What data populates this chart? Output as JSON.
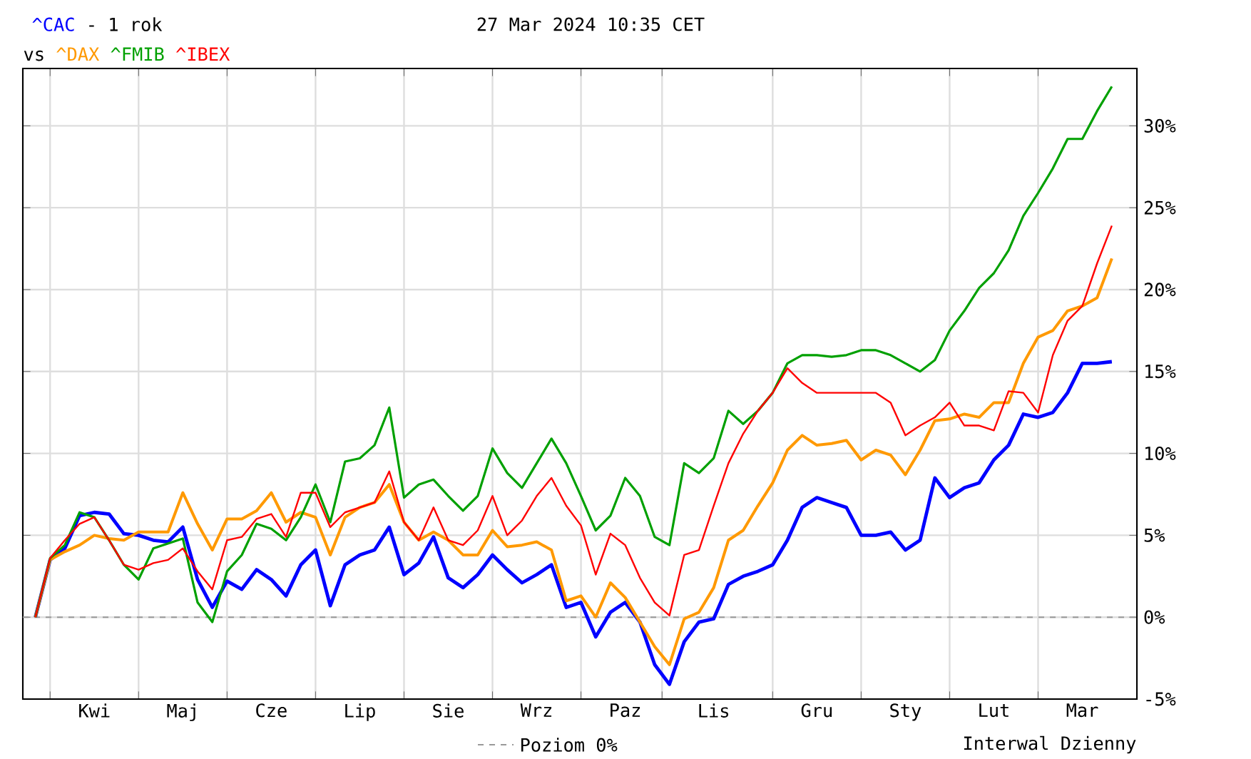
{
  "chart_data": {
    "type": "line",
    "title": "- 1 rok",
    "subtitle": "27 Mar 2024 10:35 CET",
    "legend": "bottom",
    "grid": true,
    "marker": "none",
    "line_style": "solid",
    "annotations": [
      "vs",
      "Interwal Dzienny"
    ],
    "ref_lines": [
      {
        "axis": "y",
        "value": 0,
        "label": "Poziom 0%",
        "color": "#999999",
        "line_style": "dashed"
      }
    ],
    "categories": [
      null,
      null,
      null,
      null,
      "Kwi",
      null,
      null,
      null,
      null,
      null,
      "Maj",
      null,
      null,
      null,
      null,
      null,
      "Cze",
      null,
      null,
      null,
      null,
      null,
      "Lip",
      null,
      null,
      null,
      null,
      null,
      "Sie",
      null,
      null,
      null,
      null,
      null,
      "Wrz",
      null,
      null,
      null,
      null,
      null,
      "Paz",
      null,
      null,
      null,
      null,
      null,
      "Lis",
      null,
      null,
      null,
      null,
      null,
      null,
      "Gru",
      null,
      null,
      null,
      null,
      null,
      "Sty",
      null,
      null,
      null,
      null,
      null,
      "Lut",
      null,
      null,
      null,
      null,
      null,
      "Mar",
      null,
      null
    ],
    "ylim": [
      -5,
      33.5
    ],
    "yticks": [
      {
        "value": -5,
        "label": "-5%"
      },
      {
        "value": 0,
        "label": "0%"
      },
      {
        "value": 5,
        "label": "5%"
      },
      {
        "value": 10,
        "label": "10%"
      },
      {
        "value": 15,
        "label": "15%"
      },
      {
        "value": 20,
        "label": "20%"
      },
      {
        "value": 25,
        "label": "25%"
      },
      {
        "value": 30,
        "label": "30%"
      }
    ],
    "series": [
      {
        "name": "^CAC",
        "color": "#0000ff",
        "values": [
          0,
          3.5,
          4.2,
          6.2,
          6.4,
          6.3,
          5.1,
          5.0,
          4.7,
          4.6,
          5.5,
          2.3,
          0.6,
          2.2,
          1.7,
          2.9,
          2.3,
          1.3,
          3.2,
          4.1,
          0.7,
          3.2,
          3.8,
          4.1,
          5.5,
          2.6,
          3.3,
          4.9,
          2.4,
          1.8,
          2.6,
          3.8,
          2.9,
          2.1,
          2.6,
          3.2,
          0.6,
          0.9,
          -1.2,
          0.3,
          0.9,
          -0.3,
          -2.9,
          -4.1,
          -1.5,
          -0.3,
          -0.1,
          2.0,
          2.5,
          2.8,
          3.2,
          4.7,
          6.7,
          7.3,
          7.0,
          6.7,
          5.0,
          5.0,
          5.2,
          4.1,
          4.7,
          8.5,
          7.3,
          7.9,
          8.2,
          9.6,
          10.5,
          12.4,
          12.2,
          12.5,
          13.7,
          15.5,
          15.5,
          15.6
        ]
      },
      {
        "name": "^DAX",
        "color": "#ff9900",
        "values": [
          0,
          3.5,
          4.0,
          4.4,
          5.0,
          4.8,
          4.7,
          5.2,
          5.2,
          5.2,
          7.6,
          5.7,
          4.1,
          6.0,
          6.0,
          6.5,
          7.6,
          5.8,
          6.4,
          6.1,
          3.8,
          6.1,
          6.7,
          7.0,
          8.1,
          5.8,
          4.7,
          5.2,
          4.7,
          3.8,
          3.8,
          5.3,
          4.3,
          4.4,
          4.6,
          4.1,
          1.0,
          1.3,
          0,
          2.1,
          1.2,
          -0.3,
          -1.8,
          -2.9,
          -0.1,
          0.3,
          1.8,
          4.7,
          5.3,
          6.8,
          8.2,
          10.2,
          11.1,
          10.5,
          10.6,
          10.8,
          9.6,
          10.2,
          9.9,
          8.7,
          10.2,
          12.0,
          12.1,
          12.4,
          12.2,
          13.1,
          13.1,
          15.5,
          17.1,
          17.5,
          18.7,
          19.0,
          19.5,
          21.9
        ]
      },
      {
        "name": "^FMIB",
        "color": "#00a000",
        "values": [
          0,
          3.6,
          4.4,
          6.4,
          6.1,
          4.7,
          3.2,
          2.3,
          4.2,
          4.5,
          4.8,
          0.9,
          -0.3,
          2.8,
          3.8,
          5.7,
          5.4,
          4.7,
          6.1,
          8.1,
          5.8,
          9.5,
          9.7,
          10.5,
          12.8,
          7.3,
          8.1,
          8.4,
          7.4,
          6.5,
          7.4,
          10.3,
          8.8,
          7.9,
          9.4,
          10.9,
          9.4,
          7.4,
          5.3,
          6.2,
          8.5,
          7.4,
          4.9,
          4.4,
          9.4,
          8.8,
          9.7,
          12.6,
          11.8,
          12.6,
          13.7,
          15.5,
          16.0,
          16.0,
          15.9,
          16.0,
          16.3,
          16.3,
          16.0,
          15.5,
          15.0,
          15.7,
          17.5,
          18.7,
          20.1,
          21.0,
          22.4,
          24.5,
          25.9,
          27.4,
          29.2,
          29.2,
          30.9,
          32.4
        ]
      },
      {
        "name": "^IBEX",
        "color": "#ff0000",
        "values": [
          0,
          3.6,
          4.7,
          5.7,
          6.1,
          4.7,
          3.2,
          2.9,
          3.3,
          3.5,
          4.2,
          2.8,
          1.7,
          4.7,
          4.9,
          6.0,
          6.3,
          4.9,
          7.6,
          7.6,
          5.5,
          6.4,
          6.7,
          7.0,
          8.9,
          5.8,
          4.7,
          6.7,
          4.7,
          4.4,
          5.3,
          7.4,
          5.0,
          5.9,
          7.4,
          8.5,
          6.8,
          5.6,
          2.6,
          5.1,
          4.4,
          2.4,
          0.9,
          0.1,
          3.8,
          4.1,
          6.8,
          9.4,
          11.2,
          12.6,
          13.7,
          15.2,
          14.3,
          13.7,
          13.7,
          13.7,
          13.7,
          13.7,
          13.1,
          11.1,
          11.7,
          12.2,
          13.1,
          11.7,
          11.7,
          11.4,
          13.8,
          13.7,
          12.5,
          16.0,
          18.1,
          19.0,
          21.6,
          23.9
        ]
      }
    ]
  }
}
